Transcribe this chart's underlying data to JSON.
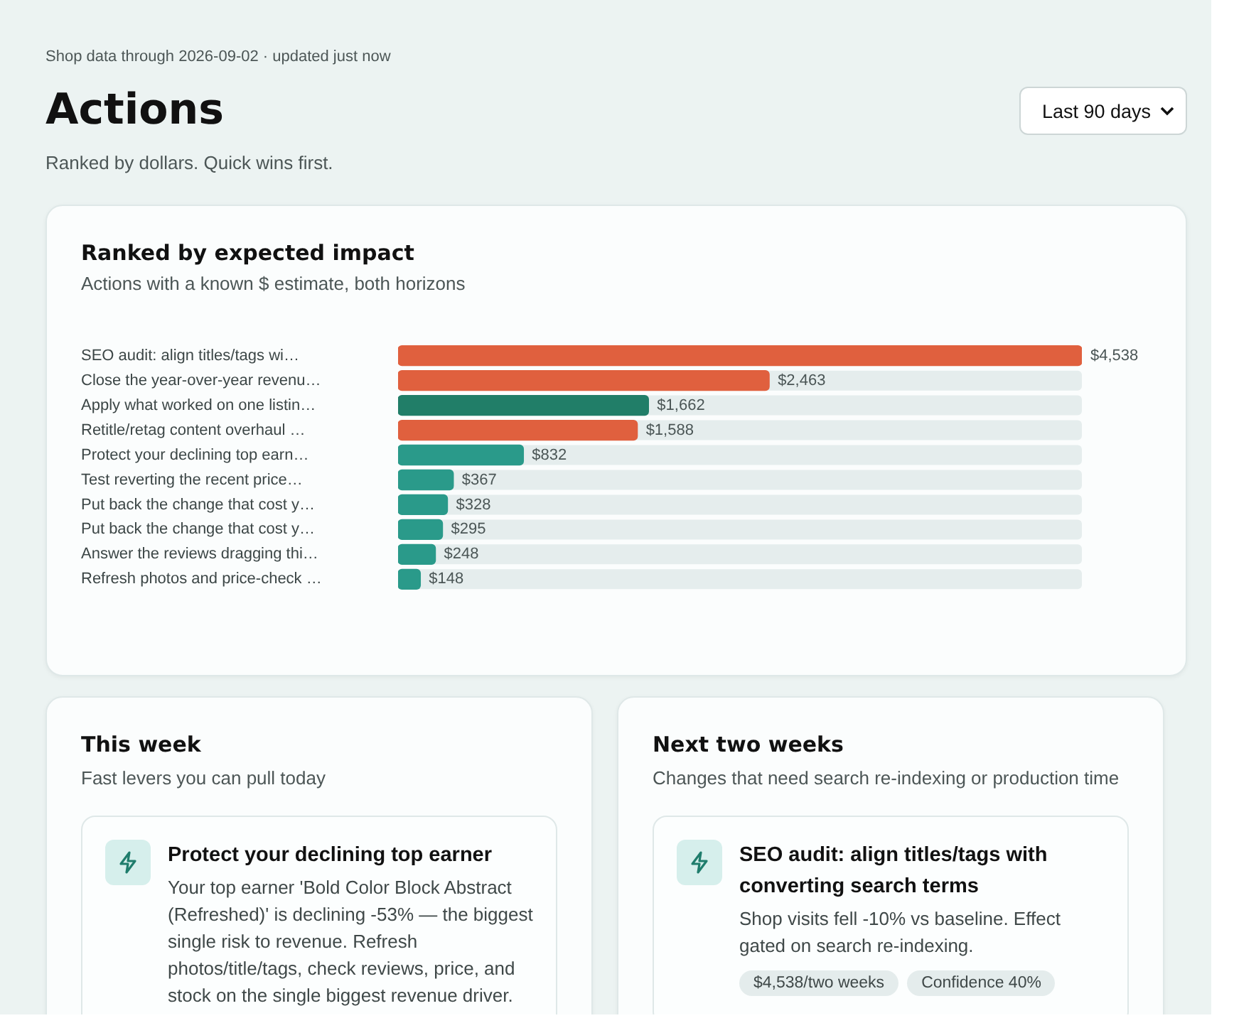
{
  "chart_data": [
    {
      "type": "bar",
      "orientation": "horizontal",
      "title": "Ranked by expected impact",
      "subtitle": "Actions with a known $ estimate, both horizons",
      "annotations": [
        "Shop data through 2026-09-02 · updated just now",
        "Actions",
        "Ranked by dollars. Quick wins first.",
        "Last 90 days"
      ],
      "categories": [
        "SEO audit: align titles/tags wi…",
        "Close the year-over-year revenu…",
        "Apply what worked on one listin…",
        "Retitle/retag content overhaul …",
        "Protect your declining top earn…",
        "Test reverting the recent price…",
        "Put back the change that cost y…",
        "Put back the change that cost y…",
        "Answer the reviews dragging thi…",
        "Refresh photos and price-check …"
      ],
      "values": [
        4538,
        2463,
        1662,
        1588,
        832,
        367,
        328,
        295,
        248,
        148
      ],
      "colors": [
        "#e0603e",
        "#e0603e",
        "#217e68",
        "#e0603e",
        "#2a9a8a",
        "#2a9a8a",
        "#2a9a8a",
        "#2a9a8a",
        "#2a9a8a",
        "#2a9a8a"
      ],
      "value_labels": [
        "$4,538",
        "$2,463",
        "$1,662",
        "$1,588",
        "$832",
        "$367",
        "$328",
        "$295",
        "$248",
        "$148"
      ],
      "grid": false,
      "legend": false,
      "tick_labels": "y"
    },
    {
      "type": "other",
      "title": "This week",
      "subtitle": "Fast levers you can pull today",
      "annotations": [
        "Protect your declining top earner",
        "Your top earner 'Bold Color Block Abstract (Refreshed)' is declining -53% — the biggest single risk to revenue. Refresh photos/title/tags, check reviews, price, and stock on the single biggest revenue driver."
      ]
    },
    {
      "type": "other",
      "title": "Next two weeks",
      "subtitle": "Changes that need search re-indexing or production time",
      "annotations": [
        "SEO audit: align titles/tags with converting search terms",
        "Shop visits fell -10% vs baseline. Effect gated on search re-indexing.",
        "$4,538/two weeks",
        "Confidence 40%"
      ]
    }
  ]
}
